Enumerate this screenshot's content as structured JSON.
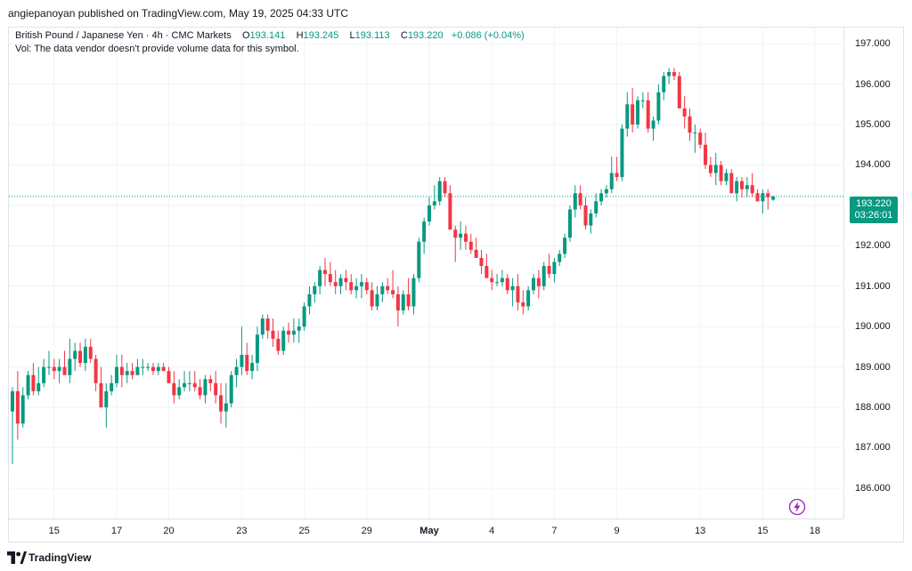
{
  "header": {
    "publish_line": "angiepanoyan published on TradingView.com, May 19, 2025 04:33 UTC"
  },
  "legend": {
    "symbol": "British Pound / Japanese Yen · 4h · CMC Markets",
    "o_label": "O",
    "o_value": "193.141",
    "h_label": "H",
    "h_value": "193.245",
    "l_label": "L",
    "l_value": "193.113",
    "c_label": "C",
    "c_value": "193.220",
    "change": "+0.086 (+0.04%)",
    "volume_note": "Vol: The data vendor doesn't provide volume data for this symbol."
  },
  "price_tag": {
    "price": "193.220",
    "countdown": "03:26:01"
  },
  "footer": {
    "brand": "TradingView"
  },
  "colors": {
    "up": "#089981",
    "down": "#f23645",
    "grid": "#f0f3fa",
    "last_line": "#089981",
    "accent_icon": "#9c27b0"
  },
  "icons": {
    "logo": "tradingview-logo-icon",
    "flash": "lightning-icon"
  },
  "chart_data": {
    "type": "candlestick",
    "symbol": "British Pound / Japanese Yen",
    "timeframe": "4h",
    "source": "CMC Markets",
    "y_ticks": [
      "186.000",
      "187.000",
      "188.000",
      "189.000",
      "190.000",
      "191.000",
      "192.000",
      "193.000",
      "194.000",
      "195.000",
      "196.000",
      "197.000"
    ],
    "ylim": [
      185.25,
      197.4
    ],
    "x_ticks": [
      {
        "label": "15",
        "bar": 8
      },
      {
        "label": "17",
        "bar": 20
      },
      {
        "label": "20",
        "bar": 30
      },
      {
        "label": "23",
        "bar": 44
      },
      {
        "label": "25",
        "bar": 56
      },
      {
        "label": "29",
        "bar": 68
      },
      {
        "label": "May",
        "bar": 80,
        "month": true
      },
      {
        "label": "4",
        "bar": 92
      },
      {
        "label": "7",
        "bar": 104
      },
      {
        "label": "9",
        "bar": 116
      },
      {
        "label": "13",
        "bar": 132
      },
      {
        "label": "15",
        "bar": 144
      },
      {
        "label": "18",
        "bar": 154
      }
    ],
    "last_price": 193.22,
    "candles": [
      [
        187.9,
        188.5,
        186.6,
        188.4
      ],
      [
        188.4,
        188.9,
        187.2,
        187.6
      ],
      [
        187.6,
        188.5,
        187.5,
        188.3
      ],
      [
        188.3,
        188.9,
        188.2,
        188.8
      ],
      [
        188.8,
        189.1,
        188.3,
        188.4
      ],
      [
        188.4,
        189.0,
        188.3,
        188.6
      ],
      [
        188.6,
        189.2,
        188.5,
        189.0
      ],
      [
        189.0,
        189.4,
        188.8,
        189.0
      ],
      [
        189.0,
        189.2,
        188.7,
        188.9
      ],
      [
        188.9,
        189.2,
        188.6,
        189.0
      ],
      [
        189.0,
        189.4,
        188.8,
        188.8
      ],
      [
        188.8,
        189.7,
        188.6,
        189.2
      ],
      [
        189.2,
        189.6,
        188.9,
        189.4
      ],
      [
        189.4,
        189.6,
        189.0,
        189.1
      ],
      [
        189.1,
        189.7,
        188.9,
        189.5
      ],
      [
        189.5,
        189.7,
        189.1,
        189.2
      ],
      [
        189.2,
        189.3,
        188.4,
        188.6
      ],
      [
        188.6,
        189.0,
        188.0,
        188.0
      ],
      [
        188.0,
        188.6,
        187.5,
        188.4
      ],
      [
        188.4,
        188.8,
        188.3,
        188.6
      ],
      [
        188.6,
        189.3,
        188.5,
        189.0
      ],
      [
        189.0,
        189.3,
        188.5,
        188.8
      ],
      [
        188.8,
        189.1,
        188.6,
        188.9
      ],
      [
        188.9,
        189.1,
        188.7,
        188.8
      ],
      [
        188.8,
        189.2,
        188.8,
        189.0
      ],
      [
        189.0,
        189.2,
        188.8,
        189.0
      ],
      [
        189.0,
        189.1,
        188.9,
        189.0
      ],
      [
        189.0,
        189.1,
        188.8,
        188.9
      ],
      [
        188.9,
        189.1,
        188.8,
        189.0
      ],
      [
        189.0,
        189.1,
        188.9,
        188.9
      ],
      [
        188.9,
        189.0,
        188.6,
        188.6
      ],
      [
        188.6,
        188.9,
        188.1,
        188.3
      ],
      [
        188.3,
        188.7,
        188.2,
        188.5
      ],
      [
        188.5,
        188.9,
        188.4,
        188.6
      ],
      [
        188.6,
        188.9,
        188.4,
        188.6
      ],
      [
        188.6,
        188.9,
        188.4,
        188.5
      ],
      [
        188.5,
        188.7,
        188.2,
        188.3
      ],
      [
        188.3,
        188.8,
        188.1,
        188.7
      ],
      [
        188.7,
        188.8,
        188.4,
        188.6
      ],
      [
        188.6,
        188.9,
        188.1,
        188.3
      ],
      [
        188.3,
        188.6,
        187.6,
        187.9
      ],
      [
        187.9,
        188.6,
        187.5,
        188.1
      ],
      [
        188.1,
        188.9,
        188.0,
        188.8
      ],
      [
        188.8,
        189.2,
        188.5,
        189.0
      ],
      [
        189.0,
        190.0,
        188.8,
        189.3
      ],
      [
        189.3,
        189.6,
        188.8,
        188.9
      ],
      [
        188.9,
        189.3,
        188.7,
        189.1
      ],
      [
        189.1,
        190.0,
        188.9,
        189.8
      ],
      [
        189.8,
        190.3,
        189.7,
        190.2
      ],
      [
        190.2,
        190.3,
        189.7,
        189.9
      ],
      [
        189.9,
        190.2,
        189.5,
        189.7
      ],
      [
        189.7,
        189.9,
        189.3,
        189.4
      ],
      [
        189.4,
        190.0,
        189.3,
        189.9
      ],
      [
        189.9,
        190.1,
        189.6,
        189.8
      ],
      [
        189.8,
        190.2,
        189.6,
        189.9
      ],
      [
        189.9,
        190.2,
        189.6,
        190.0
      ],
      [
        190.0,
        190.6,
        189.9,
        190.5
      ],
      [
        190.5,
        191.0,
        190.3,
        190.8
      ],
      [
        190.8,
        191.1,
        190.6,
        191.0
      ],
      [
        191.0,
        191.5,
        190.8,
        191.4
      ],
      [
        191.4,
        191.7,
        191.0,
        191.3
      ],
      [
        191.3,
        191.6,
        191.0,
        191.1
      ],
      [
        191.1,
        191.4,
        190.8,
        191.0
      ],
      [
        191.0,
        191.3,
        190.8,
        191.2
      ],
      [
        191.2,
        191.4,
        190.9,
        191.1
      ],
      [
        191.1,
        191.3,
        190.8,
        190.9
      ],
      [
        190.9,
        191.2,
        190.7,
        191.0
      ],
      [
        191.0,
        191.3,
        190.7,
        191.1
      ],
      [
        191.1,
        191.2,
        190.8,
        190.9
      ],
      [
        190.9,
        191.1,
        190.4,
        190.5
      ],
      [
        190.5,
        191.0,
        190.4,
        190.8
      ],
      [
        190.8,
        191.1,
        190.6,
        191.0
      ],
      [
        191.0,
        191.2,
        190.8,
        190.9
      ],
      [
        190.9,
        191.4,
        190.7,
        190.8
      ],
      [
        190.8,
        191.0,
        190.0,
        190.4
      ],
      [
        190.4,
        190.9,
        190.3,
        190.8
      ],
      [
        190.8,
        191.2,
        190.4,
        190.5
      ],
      [
        190.5,
        191.3,
        190.3,
        191.2
      ],
      [
        191.2,
        192.2,
        191.1,
        192.1
      ],
      [
        192.1,
        192.7,
        191.8,
        192.6
      ],
      [
        192.6,
        193.2,
        192.5,
        193.0
      ],
      [
        193.0,
        193.5,
        192.9,
        193.1
      ],
      [
        193.1,
        193.7,
        193.0,
        193.6
      ],
      [
        193.6,
        193.7,
        193.2,
        193.3
      ],
      [
        193.3,
        193.5,
        192.4,
        192.4
      ],
      [
        192.4,
        192.5,
        191.6,
        192.2
      ],
      [
        192.2,
        192.6,
        191.9,
        192.3
      ],
      [
        192.3,
        192.5,
        191.9,
        192.1
      ],
      [
        192.1,
        192.3,
        191.8,
        191.9
      ],
      [
        191.9,
        192.2,
        191.7,
        191.7
      ],
      [
        191.7,
        191.9,
        191.3,
        191.5
      ],
      [
        191.5,
        191.8,
        191.2,
        191.2
      ],
      [
        191.2,
        191.4,
        190.9,
        191.1
      ],
      [
        191.1,
        191.3,
        191.0,
        191.1
      ],
      [
        191.1,
        191.4,
        191.0,
        191.2
      ],
      [
        191.2,
        191.3,
        190.8,
        190.9
      ],
      [
        190.9,
        191.2,
        190.5,
        191.0
      ],
      [
        191.0,
        191.3,
        190.4,
        190.6
      ],
      [
        190.6,
        190.9,
        190.3,
        190.5
      ],
      [
        190.5,
        191.0,
        190.4,
        190.9
      ],
      [
        190.9,
        191.3,
        190.8,
        191.2
      ],
      [
        191.2,
        191.4,
        190.7,
        191.0
      ],
      [
        191.0,
        191.6,
        190.9,
        191.5
      ],
      [
        191.5,
        191.8,
        191.2,
        191.3
      ],
      [
        191.3,
        191.7,
        191.1,
        191.6
      ],
      [
        191.6,
        191.9,
        191.5,
        191.8
      ],
      [
        191.8,
        192.3,
        191.7,
        192.2
      ],
      [
        192.2,
        193.0,
        192.1,
        192.9
      ],
      [
        192.9,
        193.5,
        192.7,
        193.3
      ],
      [
        193.3,
        193.5,
        192.9,
        193.0
      ],
      [
        193.0,
        193.2,
        192.4,
        192.5
      ],
      [
        192.5,
        192.9,
        192.3,
        192.8
      ],
      [
        192.8,
        193.3,
        192.7,
        193.1
      ],
      [
        193.1,
        193.4,
        193.0,
        193.3
      ],
      [
        193.3,
        193.5,
        193.2,
        193.4
      ],
      [
        193.4,
        194.2,
        193.3,
        193.8
      ],
      [
        193.8,
        194.2,
        193.6,
        193.7
      ],
      [
        193.7,
        195.0,
        193.6,
        194.9
      ],
      [
        194.9,
        195.8,
        194.7,
        195.5
      ],
      [
        195.5,
        195.9,
        194.8,
        195.0
      ],
      [
        195.0,
        195.7,
        194.9,
        195.6
      ],
      [
        195.6,
        195.8,
        195.4,
        195.6
      ],
      [
        195.6,
        195.8,
        194.8,
        194.9
      ],
      [
        194.9,
        195.2,
        194.6,
        195.1
      ],
      [
        195.1,
        196.0,
        195.0,
        195.8
      ],
      [
        195.8,
        196.3,
        195.6,
        196.2
      ],
      [
        196.2,
        196.4,
        196.0,
        196.3
      ],
      [
        196.3,
        196.4,
        196.1,
        196.2
      ],
      [
        196.2,
        196.3,
        195.4,
        195.4
      ],
      [
        195.4,
        195.7,
        194.9,
        195.2
      ],
      [
        195.2,
        195.4,
        194.6,
        194.8
      ],
      [
        194.8,
        195.0,
        194.3,
        194.8
      ],
      [
        194.8,
        194.9,
        194.4,
        194.5
      ],
      [
        194.5,
        194.8,
        193.9,
        194.0
      ],
      [
        194.0,
        194.2,
        193.7,
        193.8
      ],
      [
        193.8,
        194.3,
        193.5,
        194.0
      ],
      [
        194.0,
        194.1,
        193.5,
        193.6
      ],
      [
        193.6,
        193.9,
        193.5,
        193.8
      ],
      [
        193.8,
        193.9,
        193.3,
        193.3
      ],
      [
        193.3,
        193.7,
        193.1,
        193.6
      ],
      [
        193.6,
        193.7,
        193.2,
        193.4
      ],
      [
        193.4,
        193.7,
        193.2,
        193.5
      ],
      [
        193.5,
        193.8,
        193.2,
        193.3
      ],
      [
        193.3,
        193.4,
        193.1,
        193.1
      ],
      [
        193.1,
        193.4,
        192.8,
        193.3
      ],
      [
        193.3,
        193.4,
        192.9,
        193.2
      ],
      [
        193.141,
        193.245,
        193.113,
        193.22
      ]
    ]
  }
}
